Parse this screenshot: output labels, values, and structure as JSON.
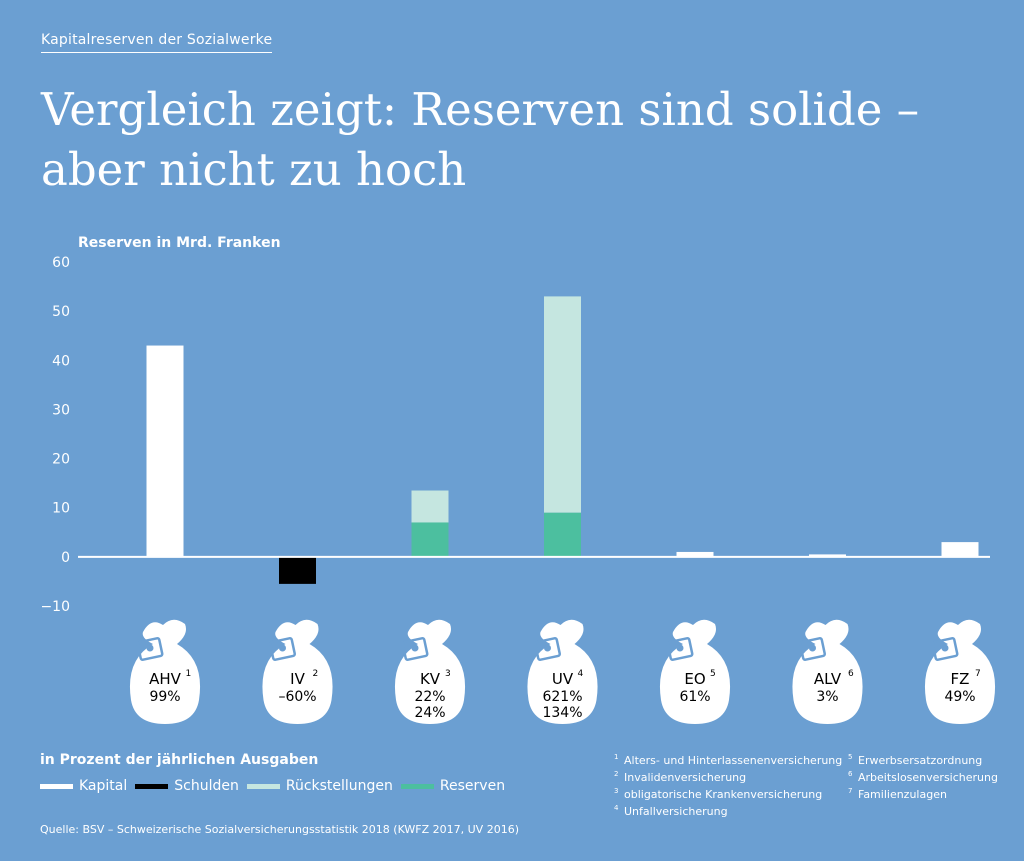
{
  "header": {
    "kicker": "Kapitalreserven der Sozialwerke",
    "title_line1": "Vergleich zeigt: Reserven sind solide –",
    "title_line2": "aber nicht zu hoch"
  },
  "colors": {
    "background": "#6b9fd2",
    "kapital": "#ffffff",
    "schulden": "#000000",
    "rueckstellungen": "#c5e6e0",
    "reserven": "#4cbf9f",
    "icon_accent": "#6b9fd2"
  },
  "chart_data": {
    "type": "bar",
    "stacked": true,
    "ylabel": "Reserven in Mrd. Franken",
    "ylim": [
      -10,
      60
    ],
    "yticks": [
      -10,
      0,
      10,
      20,
      30,
      40,
      50,
      60
    ],
    "grid": false,
    "categories": [
      "AHV",
      "IV",
      "KV",
      "UV",
      "EO",
      "ALV",
      "FZ"
    ],
    "category_footnote": [
      "1",
      "2",
      "3",
      "4",
      "5",
      "6",
      "7"
    ],
    "percent_labels": [
      [
        "99%"
      ],
      [
        "–60%"
      ],
      [
        "22%",
        "24%"
      ],
      [
        "621%",
        "134%"
      ],
      [
        "61%"
      ],
      [
        "3%"
      ],
      [
        "49%"
      ]
    ],
    "series": [
      {
        "name": "Kapital",
        "color": "#ffffff",
        "values": [
          43,
          0,
          0,
          0,
          1,
          0.5,
          3
        ]
      },
      {
        "name": "Schulden",
        "color": "#000000",
        "values": [
          0,
          -5.5,
          0,
          0,
          0,
          0,
          0
        ]
      },
      {
        "name": "Reserven",
        "color": "#4cbf9f",
        "values": [
          0,
          0,
          7,
          9,
          0,
          0,
          0
        ]
      },
      {
        "name": "Rückstellungen",
        "color": "#c5e6e0",
        "values": [
          0,
          0,
          6.5,
          44,
          0,
          0,
          0
        ]
      }
    ],
    "percent_caption": "in Prozent der jährlichen Ausgaben"
  },
  "legend": [
    {
      "label": "Kapital",
      "color": "#ffffff"
    },
    {
      "label": "Schulden",
      "color": "#000000"
    },
    {
      "label": "Rückstellungen",
      "color": "#c5e6e0"
    },
    {
      "label": "Reserven",
      "color": "#4cbf9f"
    }
  ],
  "footnotes": {
    "col1": [
      {
        "num": "1",
        "text": "Alters- und Hinterlassenenversicherung"
      },
      {
        "num": "2",
        "text": "Invalidenversicherung"
      },
      {
        "num": "3",
        "text": "obligatorische Krankenversicherung"
      },
      {
        "num": "4",
        "text": "Unfallversicherung"
      }
    ],
    "col2": [
      {
        "num": "5",
        "text": "Erwerbsersatzordnung"
      },
      {
        "num": "6",
        "text": "Arbeitslosenversicherung"
      },
      {
        "num": "7",
        "text": "Familienzulagen"
      }
    ]
  },
  "source": "Quelle: BSV – Schweizerische Sozialversicherungsstatistik 2018 (KWFZ 2017, UV 2016)"
}
